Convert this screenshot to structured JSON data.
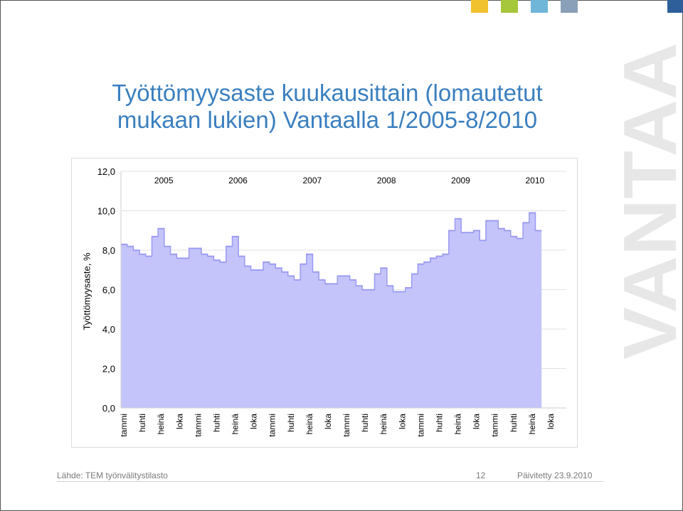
{
  "slide": {
    "title": "Työttömyysaste kuukausittain (lomautetut mukaan lukien) Vantaalla 1/2005-8/2010",
    "logo_text": "VANTAA",
    "footer_source": "Lähde: TEM työnvälitystilasto",
    "page_number": "12",
    "footer_updated": "Päivitetty 23.9.2010",
    "deco_colors": [
      "#f2c22e",
      "#a6c63b",
      "#6fb6d9",
      "#8aa0b8",
      "#2e5f9a"
    ]
  },
  "chart_data": {
    "type": "area",
    "title": "",
    "xlabel": "",
    "ylabel": "Työttömyysaste, %",
    "ylim": [
      0,
      12
    ],
    "yticks": [
      "0,0",
      "2,0",
      "4,0",
      "6,0",
      "8,0",
      "10,0",
      "12,0"
    ],
    "year_labels": [
      "2005",
      "2006",
      "2007",
      "2008",
      "2009",
      "2010"
    ],
    "xtick_labels": [
      "tammi",
      "huhti",
      "heinä",
      "loka",
      "tammi",
      "huhti",
      "heinä",
      "loka",
      "tammi",
      "huhti",
      "heinä",
      "loka",
      "tammi",
      "huhti",
      "heinä",
      "loka",
      "tammi",
      "huhti",
      "heinä",
      "loka",
      "tammi",
      "huhti",
      "heinä",
      "loka"
    ],
    "grid": true,
    "fill_color": "#c4c4fb",
    "line_color": "#9a9af2",
    "series": [
      {
        "values": [
          8.3,
          8.2,
          8.0,
          7.8,
          7.7,
          8.7,
          9.1,
          8.2,
          7.8,
          7.6,
          7.6,
          8.1,
          8.1,
          7.8,
          7.7,
          7.5,
          7.4,
          8.2,
          8.7,
          7.7,
          7.2,
          7.0,
          7.0,
          7.4,
          7.3,
          7.1,
          6.9,
          6.7,
          6.5,
          7.3,
          7.8,
          6.9,
          6.5,
          6.3,
          6.3,
          6.7,
          6.7,
          6.5,
          6.2,
          6.0,
          6.0,
          6.8,
          7.1,
          6.2,
          5.9,
          5.9,
          6.1,
          6.8,
          7.3,
          7.4,
          7.6,
          7.7,
          7.8,
          9.0,
          9.6,
          8.9,
          8.9,
          9.0,
          8.5,
          9.5,
          9.5,
          9.1,
          9.0,
          8.7,
          8.6,
          9.4,
          9.9,
          9.0
        ]
      }
    ]
  }
}
